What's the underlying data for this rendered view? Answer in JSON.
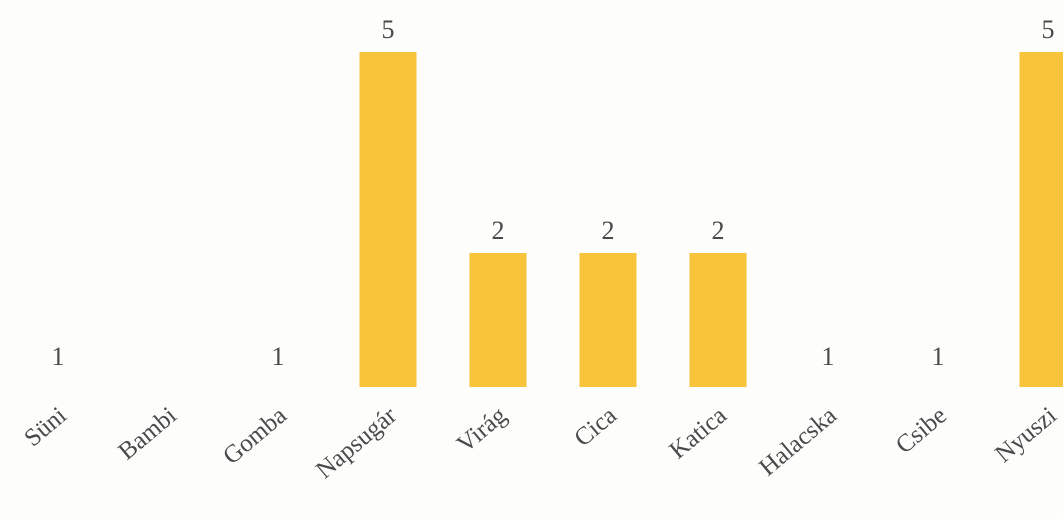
{
  "chart_data": {
    "type": "bar",
    "categories": [
      "Süni",
      "Bambi",
      "Gomba",
      "Napsugár",
      "Virág",
      "Cica",
      "Katica",
      "Halacska",
      "Csibe",
      "Nyuszi"
    ],
    "values": [
      1,
      null,
      1,
      5,
      2,
      2,
      2,
      1,
      1,
      5
    ],
    "value_labels": [
      "1",
      "",
      "1",
      "5",
      "2",
      "2",
      "2",
      "1",
      "1",
      "5"
    ],
    "title": "",
    "xlabel": "",
    "ylabel": "",
    "ylim": [
      0,
      5
    ],
    "grid": false,
    "legend": "none",
    "bar_color": "#f7c43a",
    "text_color": "#4a4a4a"
  }
}
